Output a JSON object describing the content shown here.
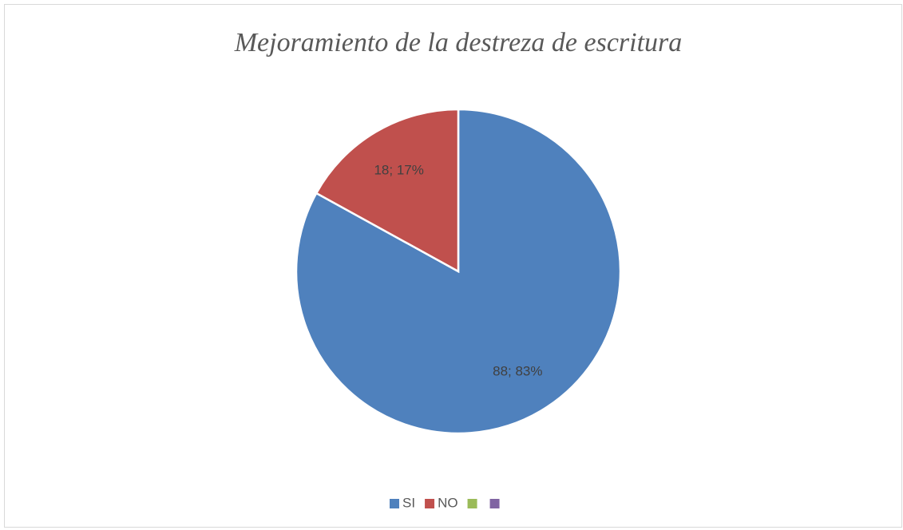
{
  "chart_data": {
    "type": "pie",
    "title": "Mejoramiento de la destreza de escritura",
    "categories": [
      "SI",
      "NO",
      null,
      null
    ],
    "values": [
      88,
      18,
      0,
      0
    ],
    "value_labels": [
      "88; 83%",
      "18; 17%",
      null,
      null
    ],
    "colors": [
      "#4f81bd",
      "#c0504d",
      "#9bbb59",
      "#8064a2"
    ],
    "legend": "bottom"
  }
}
